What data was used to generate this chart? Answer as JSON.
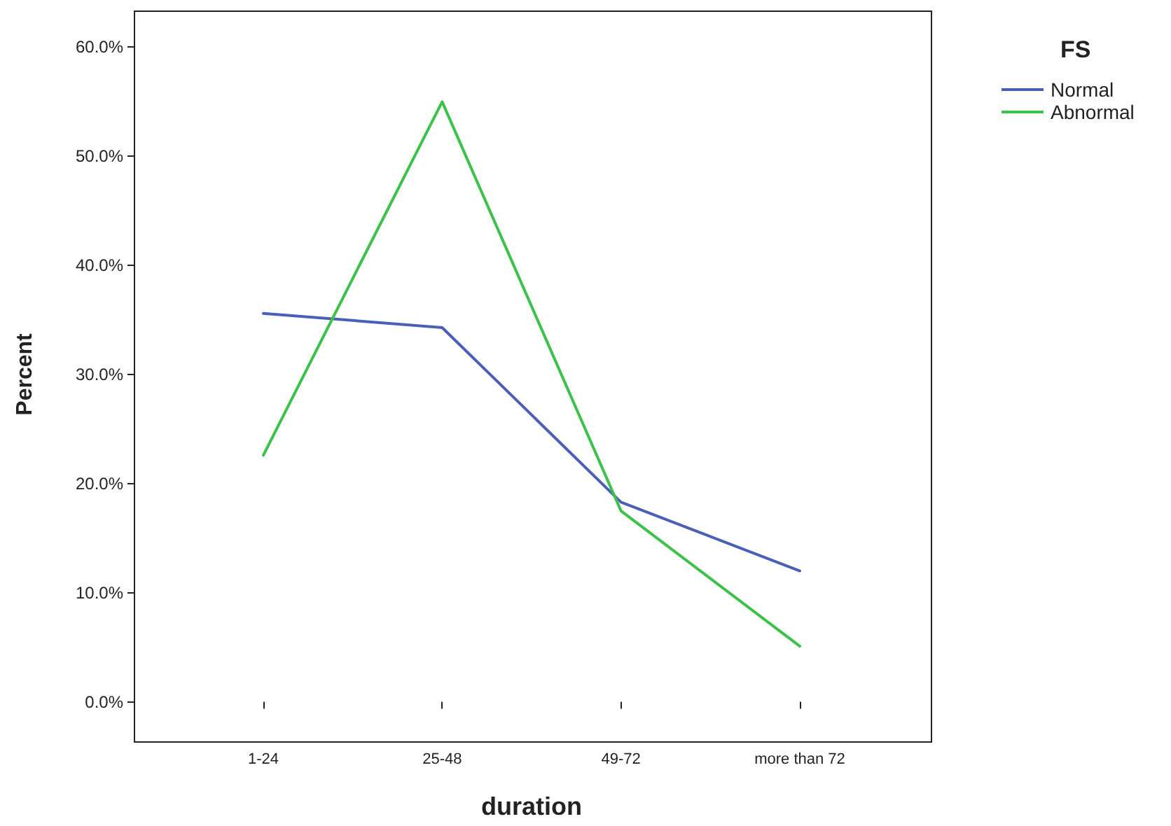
{
  "chart_data": {
    "type": "line",
    "xlabel": "duration",
    "ylabel": "Percent",
    "legend_title": "FS",
    "legend": "top right",
    "grid": false,
    "marker": "none",
    "line_style": "solid",
    "categories": [
      "1-24",
      "25-48",
      "49-72",
      "more than 72"
    ],
    "ylim": [
      -3.3,
      63.3
    ],
    "yticks": [
      {
        "value": 0,
        "label": "0.0%"
      },
      {
        "value": 10,
        "label": "10.0%"
      },
      {
        "value": 20,
        "label": "20.0%"
      },
      {
        "value": 30,
        "label": "30.0%"
      },
      {
        "value": 40,
        "label": "40.0%"
      },
      {
        "value": 50,
        "label": "50.0%"
      },
      {
        "value": 60,
        "label": "60.0%"
      }
    ],
    "series": [
      {
        "name": "Normal",
        "color": "#4a5fb8",
        "values": [
          35.6,
          34.3,
          18.3,
          12.0
        ]
      },
      {
        "name": "Abnormal",
        "color": "#3cc24a",
        "values": [
          22.6,
          55.0,
          17.5,
          5.1
        ]
      }
    ]
  }
}
